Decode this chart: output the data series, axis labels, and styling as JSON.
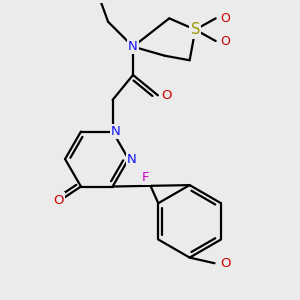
{
  "bg_color": "#ebebeb",
  "line_color": "#000000",
  "bond_lw": 1.6,
  "atom_labels": {
    "N1": {
      "text": "N",
      "color": "#1414ff"
    },
    "N2": {
      "text": "N",
      "color": "#1414ff"
    },
    "O_keto": {
      "text": "O",
      "color": "#cc0000"
    },
    "F": {
      "text": "F",
      "color": "#cc00cc"
    },
    "O_meth": {
      "text": "O",
      "color": "#cc0000"
    },
    "O_amide": {
      "text": "O",
      "color": "#cc0000"
    },
    "N_amide": {
      "text": "N",
      "color": "#1414ff"
    },
    "S": {
      "text": "S",
      "color": "#999900"
    },
    "O_S1": {
      "text": "O",
      "color": "#cc0000"
    },
    "O_S2": {
      "text": "O",
      "color": "#cc0000"
    }
  }
}
